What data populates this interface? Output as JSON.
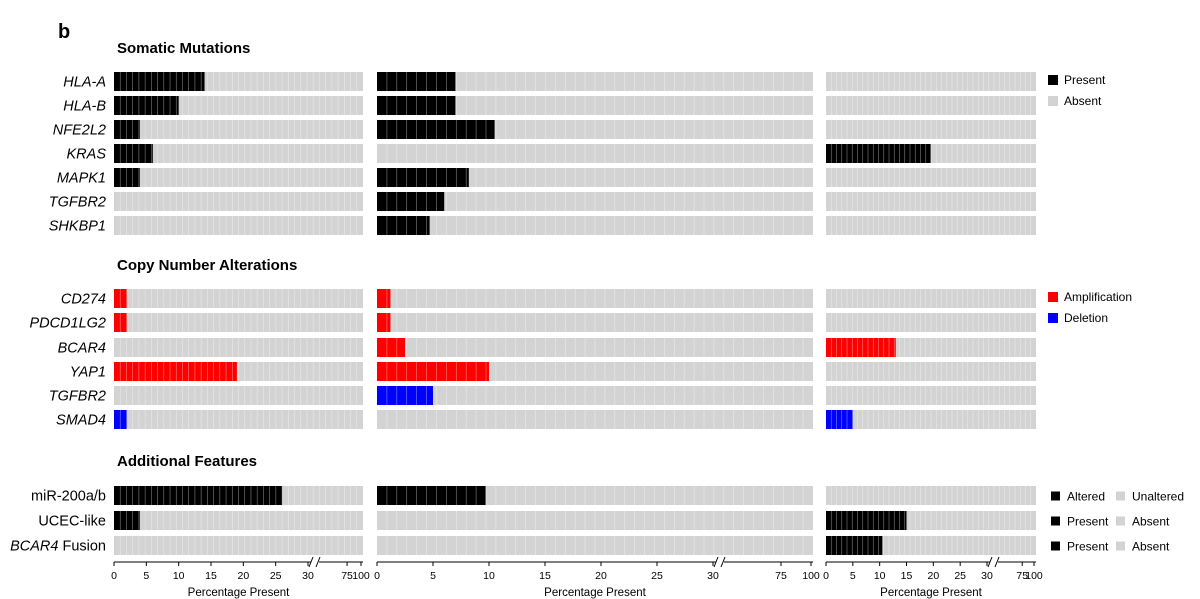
{
  "chart_data": {
    "type": "heatmap",
    "panel_label": "b",
    "unit": "Percentage Present",
    "axes": [
      {
        "xlabel": "Percentage Present",
        "tick_labels": [
          "0",
          "5",
          "10",
          "15",
          "20",
          "25",
          "30",
          "75",
          "100"
        ]
      },
      {
        "xlabel": "Percentage Present",
        "tick_labels": [
          "0",
          "5",
          "10",
          "15",
          "20",
          "25",
          "30",
          "75",
          "100"
        ]
      },
      {
        "xlabel": "Percentage Present",
        "tick_labels": [
          "0",
          "5",
          "10",
          "15",
          "20",
          "25",
          "30",
          "75",
          "100"
        ]
      }
    ],
    "sections": [
      {
        "title": "Somatic Mutations",
        "legend": [
          {
            "label": "Present",
            "color": "#000000"
          },
          {
            "label": "Absent",
            "color": "#d3d3d3"
          }
        ],
        "rows": [
          {
            "label": "HLA-A",
            "italic": true,
            "color": "#000000",
            "values": [
              14,
              7,
              0
            ]
          },
          {
            "label": "HLA-B",
            "italic": true,
            "color": "#000000",
            "values": [
              10,
              7,
              0
            ]
          },
          {
            "label": "NFE2L2",
            "italic": true,
            "color": "#000000",
            "values": [
              4,
              10.5,
              0
            ]
          },
          {
            "label": "KRAS",
            "italic": true,
            "color": "#000000",
            "values": [
              6,
              0,
              19.5
            ]
          },
          {
            "label": "MAPK1",
            "italic": true,
            "color": "#000000",
            "values": [
              4,
              8.2,
              0
            ]
          },
          {
            "label": "TGFBR2",
            "italic": true,
            "color": "#000000",
            "values": [
              0,
              6,
              0
            ]
          },
          {
            "label": "SHKBP1",
            "italic": true,
            "color": "#000000",
            "values": [
              0,
              4.7,
              0
            ]
          }
        ]
      },
      {
        "title": "Copy Number Alterations",
        "legend": [
          {
            "label": "Amplification",
            "color": "#ff0000"
          },
          {
            "label": "Deletion",
            "color": "#0000ff"
          }
        ],
        "rows": [
          {
            "label": "CD274",
            "italic": true,
            "color": "#ff0000",
            "values": [
              2,
              1.2,
              0
            ]
          },
          {
            "label": "PDCD1LG2",
            "italic": true,
            "color": "#ff0000",
            "values": [
              2,
              1.2,
              0
            ]
          },
          {
            "label": "BCAR4",
            "italic": true,
            "color": "#ff0000",
            "values": [
              0,
              2.5,
              13
            ]
          },
          {
            "label": "YAP1",
            "italic": true,
            "color": "#ff0000",
            "values": [
              19,
              10,
              0
            ]
          },
          {
            "label": "TGFBR2",
            "italic": true,
            "color": "#0000ff",
            "values": [
              0,
              5,
              0
            ]
          },
          {
            "label": "SMAD4",
            "italic": true,
            "color": "#0000ff",
            "values": [
              2,
              0,
              5
            ]
          }
        ]
      },
      {
        "title": "Additional Features",
        "rows": [
          {
            "label": "miR-200a/b",
            "italic": false,
            "color": "#000000",
            "values": [
              26,
              9.7,
              0
            ],
            "legend": [
              {
                "label": "Altered",
                "color": "#000000"
              },
              {
                "label": "Unaltered",
                "color": "#d3d3d3"
              }
            ]
          },
          {
            "label": "UCEC-like",
            "italic": false,
            "color": "#000000",
            "values": [
              4,
              0,
              15
            ],
            "legend": [
              {
                "label": "Present",
                "color": "#000000"
              },
              {
                "label": "Absent",
                "color": "#d3d3d3"
              }
            ]
          },
          {
            "label": "BCAR4",
            "label_suffix": " Fusion",
            "italic": true,
            "color": "#000000",
            "values": [
              0,
              0,
              10.5
            ],
            "legend": [
              {
                "label": "Present",
                "color": "#000000"
              },
              {
                "label": "Absent",
                "color": "#d3d3d3"
              }
            ]
          }
        ]
      }
    ]
  }
}
